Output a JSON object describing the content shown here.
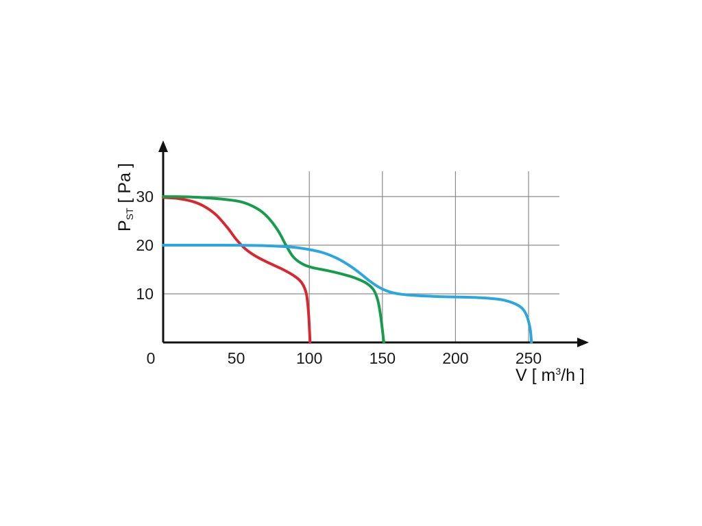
{
  "page": {
    "background": "#ffffff"
  },
  "chart_data": {
    "type": "line",
    "title": "",
    "ylabel": {
      "prefix": "P",
      "sub": "ST",
      "suffix": " [ Pa ]"
    },
    "xlabel": {
      "prefix": "V [ m",
      "sup": "3",
      "suffix": "/h ]"
    },
    "x_axis": {
      "min": 0,
      "max": 250,
      "ticks": [
        50,
        100,
        150,
        200,
        250
      ],
      "origin_label": "0"
    },
    "y_axis": {
      "min": 0,
      "max": 30,
      "ticks": [
        10,
        20,
        30
      ]
    },
    "grid": {
      "on": true,
      "color": "#8a8a8a",
      "x_lines": [
        100,
        150,
        200,
        250
      ],
      "y_lines": [
        10,
        20,
        30
      ]
    },
    "axis_color": "#111111",
    "legend": {
      "position": "none"
    },
    "series": [
      {
        "name": "curve-red",
        "color": "#d7282f",
        "points": [
          [
            0,
            29.8
          ],
          [
            10,
            29.6
          ],
          [
            20,
            29.0
          ],
          [
            28,
            28.0
          ],
          [
            36,
            26.3
          ],
          [
            44,
            23.6
          ],
          [
            50,
            21.2
          ],
          [
            56,
            19.3
          ],
          [
            63,
            17.8
          ],
          [
            72,
            16.4
          ],
          [
            82,
            15.0
          ],
          [
            90,
            13.6
          ],
          [
            95,
            12.2
          ],
          [
            98,
            10.0
          ],
          [
            99.5,
            6.0
          ],
          [
            100.5,
            0
          ]
        ]
      },
      {
        "name": "curve-green",
        "color": "#169c4b",
        "points": [
          [
            0,
            30
          ],
          [
            20,
            29.9
          ],
          [
            40,
            29.5
          ],
          [
            52,
            29.0
          ],
          [
            60,
            28.2
          ],
          [
            67,
            27.0
          ],
          [
            73,
            25.3
          ],
          [
            79,
            22.8
          ],
          [
            84,
            20.0
          ],
          [
            89,
            17.6
          ],
          [
            95,
            16.2
          ],
          [
            102,
            15.4
          ],
          [
            112,
            14.8
          ],
          [
            122,
            14.1
          ],
          [
            131,
            13.3
          ],
          [
            139,
            12.2
          ],
          [
            144,
            10.8
          ],
          [
            147,
            8.5
          ],
          [
            149,
            5.0
          ],
          [
            151,
            0
          ]
        ]
      },
      {
        "name": "curve-blue",
        "color": "#2ba6df",
        "points": [
          [
            0,
            20
          ],
          [
            40,
            20
          ],
          [
            70,
            19.9
          ],
          [
            88,
            19.6
          ],
          [
            100,
            19.1
          ],
          [
            110,
            18.4
          ],
          [
            119,
            17.3
          ],
          [
            127,
            15.9
          ],
          [
            134,
            14.4
          ],
          [
            141,
            12.7
          ],
          [
            148,
            11.3
          ],
          [
            155,
            10.4
          ],
          [
            163,
            9.9
          ],
          [
            175,
            9.6
          ],
          [
            192,
            9.4
          ],
          [
            208,
            9.3
          ],
          [
            222,
            9.1
          ],
          [
            233,
            8.7
          ],
          [
            243,
            7.6
          ],
          [
            248,
            6.0
          ],
          [
            251,
            3.0
          ],
          [
            252,
            0
          ]
        ]
      }
    ]
  }
}
